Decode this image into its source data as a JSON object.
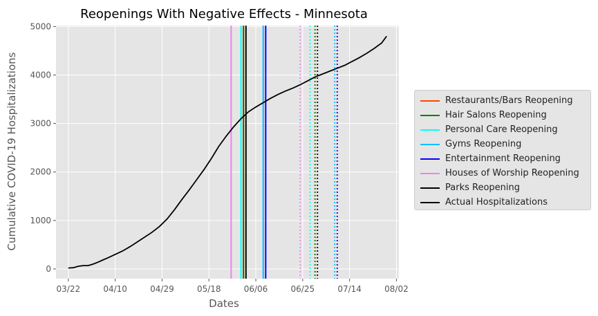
{
  "chart_data": {
    "type": "line",
    "title": "Reopenings With Negative Effects - Minnesota",
    "xlabel": "Dates",
    "ylabel": "Cumulative COVID-19 Hospitalizations",
    "x_ticks": [
      "03/22",
      "04/10",
      "04/29",
      "05/18",
      "06/06",
      "06/25",
      "07/14",
      "08/02"
    ],
    "x_range": [
      "2020-03-17",
      "2020-08-03"
    ],
    "y_ticks": [
      0,
      1000,
      2000,
      3000,
      4000,
      5000
    ],
    "ylim": [
      -200,
      5020
    ],
    "grid": true,
    "legend_position": "right",
    "series": [
      {
        "name": "Actual Hospitalizations",
        "color": "#000000",
        "x": [
          "2020-03-22",
          "2020-03-24",
          "2020-03-26",
          "2020-03-28",
          "2020-03-30",
          "2020-04-01",
          "2020-04-03",
          "2020-04-05",
          "2020-04-07",
          "2020-04-10",
          "2020-04-13",
          "2020-04-16",
          "2020-04-19",
          "2020-04-22",
          "2020-04-25",
          "2020-04-28",
          "2020-05-01",
          "2020-05-04",
          "2020-05-07",
          "2020-05-10",
          "2020-05-13",
          "2020-05-16",
          "2020-05-19",
          "2020-05-22",
          "2020-05-25",
          "2020-05-28",
          "2020-05-31",
          "2020-06-03",
          "2020-06-06",
          "2020-06-09",
          "2020-06-12",
          "2020-06-15",
          "2020-06-18",
          "2020-06-21",
          "2020-06-24",
          "2020-06-27",
          "2020-06-30",
          "2020-07-03",
          "2020-07-06",
          "2020-07-09",
          "2020-07-12",
          "2020-07-15",
          "2020-07-18",
          "2020-07-21",
          "2020-07-24",
          "2020-07-27",
          "2020-07-29"
        ],
        "values": [
          20,
          25,
          55,
          70,
          70,
          100,
          140,
          185,
          230,
          300,
          370,
          460,
          560,
          660,
          760,
          880,
          1030,
          1220,
          1430,
          1630,
          1840,
          2050,
          2280,
          2530,
          2740,
          2930,
          3100,
          3240,
          3340,
          3430,
          3520,
          3600,
          3670,
          3730,
          3800,
          3880,
          3960,
          4020,
          4080,
          4140,
          4200,
          4280,
          4360,
          4450,
          4550,
          4660,
          4800
        ]
      }
    ],
    "reopenings": [
      {
        "name": "Restaurants/Bars Reopening",
        "color": "#ff4500",
        "dates": [
          "2020-06-01",
          "2020-06-30"
        ]
      },
      {
        "name": "Hair Salons Reopening",
        "color": "#008000",
        "dates": [
          "2020-06-01",
          "2020-06-30"
        ]
      },
      {
        "name": "Personal Care Reopening",
        "color": "#00ffff",
        "dates": [
          "2020-05-31",
          "2020-06-28"
        ]
      },
      {
        "name": "Gyms Reopening",
        "color": "#00bfff",
        "dates": [
          "2020-06-09",
          "2020-07-08"
        ]
      },
      {
        "name": "Entertainment Reopening",
        "color": "#0000ff",
        "dates": [
          "2020-06-10",
          "2020-07-09"
        ]
      },
      {
        "name": "Houses of Worship Reopening",
        "color": "#ee82ee",
        "dates": [
          "2020-05-27",
          "2020-06-24"
        ]
      },
      {
        "name": "Parks Reopening",
        "color": "#000000",
        "dates": [
          "2020-06-02",
          "2020-07-01"
        ]
      }
    ]
  }
}
